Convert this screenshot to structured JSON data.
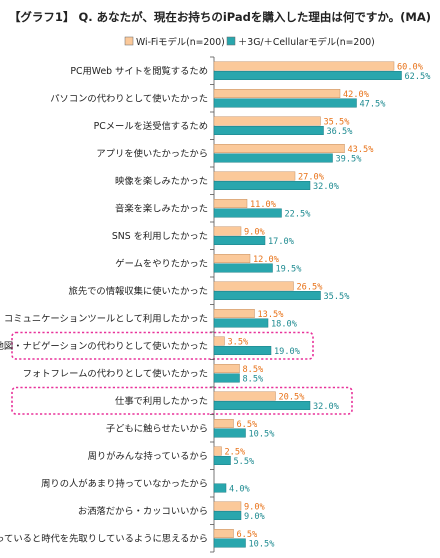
{
  "chart_data": {
    "type": "bar",
    "orientation": "horizontal",
    "title": "【グラフ1】 Q. あなたが、現在お持ちのiPadを購入した理由は何ですか。(MA)",
    "categories": [
      "PC用Web サイトを閲覧するため",
      "パソコンの代わりとして使いたかった",
      "PCメールを送受信するため",
      "アプリを使いたかったから",
      "映像を楽しみたかった",
      "音楽を楽しみたかった",
      "SNS を利用したかった",
      "ゲームをやりたかった",
      "旅先での情報収集に使いたかった",
      "コミュニケーションツールとして利用したかった",
      "地図・ナビゲーションの代わりとして使いたかった",
      "フォトフレームの代わりとして使いたかった",
      "仕事で利用したかった",
      "子どもに触らせたいから",
      "周りがみんな持っているから",
      "周りの人があまり持っていなかったから",
      "お洒落だから・カッコいいから",
      "持っていると時代を先取りしているように思えるから"
    ],
    "series": [
      {
        "name": "Wi-Fiモデル(n=200)",
        "color": "#fbc99a",
        "label_color": "#e8731a",
        "values": [
          60.0,
          42.0,
          35.5,
          43.5,
          27.0,
          11.0,
          9.0,
          12.0,
          26.5,
          13.5,
          3.5,
          8.5,
          20.5,
          6.5,
          2.5,
          null,
          9.0,
          6.5
        ],
        "labels": [
          "60.0%",
          "42.0%",
          "35.5%",
          "43.5%",
          "27.0%",
          "11.0%",
          "9.0%",
          "12.0%",
          "26.5%",
          "13.5%",
          "3.5%",
          "8.5%",
          "20.5%",
          "6.5%",
          "2.5%",
          "",
          "9.0%",
          "6.5%"
        ]
      },
      {
        "name": "＋3G/＋Cellularモデル(n=200)",
        "color": "#29a6ad",
        "label_color": "#1f8b91",
        "values": [
          62.5,
          47.5,
          36.5,
          39.5,
          32.0,
          22.5,
          17.0,
          19.5,
          35.5,
          18.0,
          19.0,
          8.5,
          32.0,
          10.5,
          5.5,
          4.0,
          9.0,
          10.5
        ],
        "labels": [
          "62.5%",
          "47.5%",
          "36.5%",
          "39.5%",
          "32.0%",
          "22.5%",
          "17.0%",
          "19.5%",
          "35.5%",
          "18.0%",
          "19.0%",
          "8.5%",
          "32.0%",
          "10.5%",
          "5.5%",
          "4.0%",
          "9.0%",
          "10.5%"
        ]
      }
    ],
    "highlighted_categories": [
      10,
      12
    ],
    "highlight_color": "#e8329a",
    "legend_position": "top-right",
    "grid": false
  }
}
